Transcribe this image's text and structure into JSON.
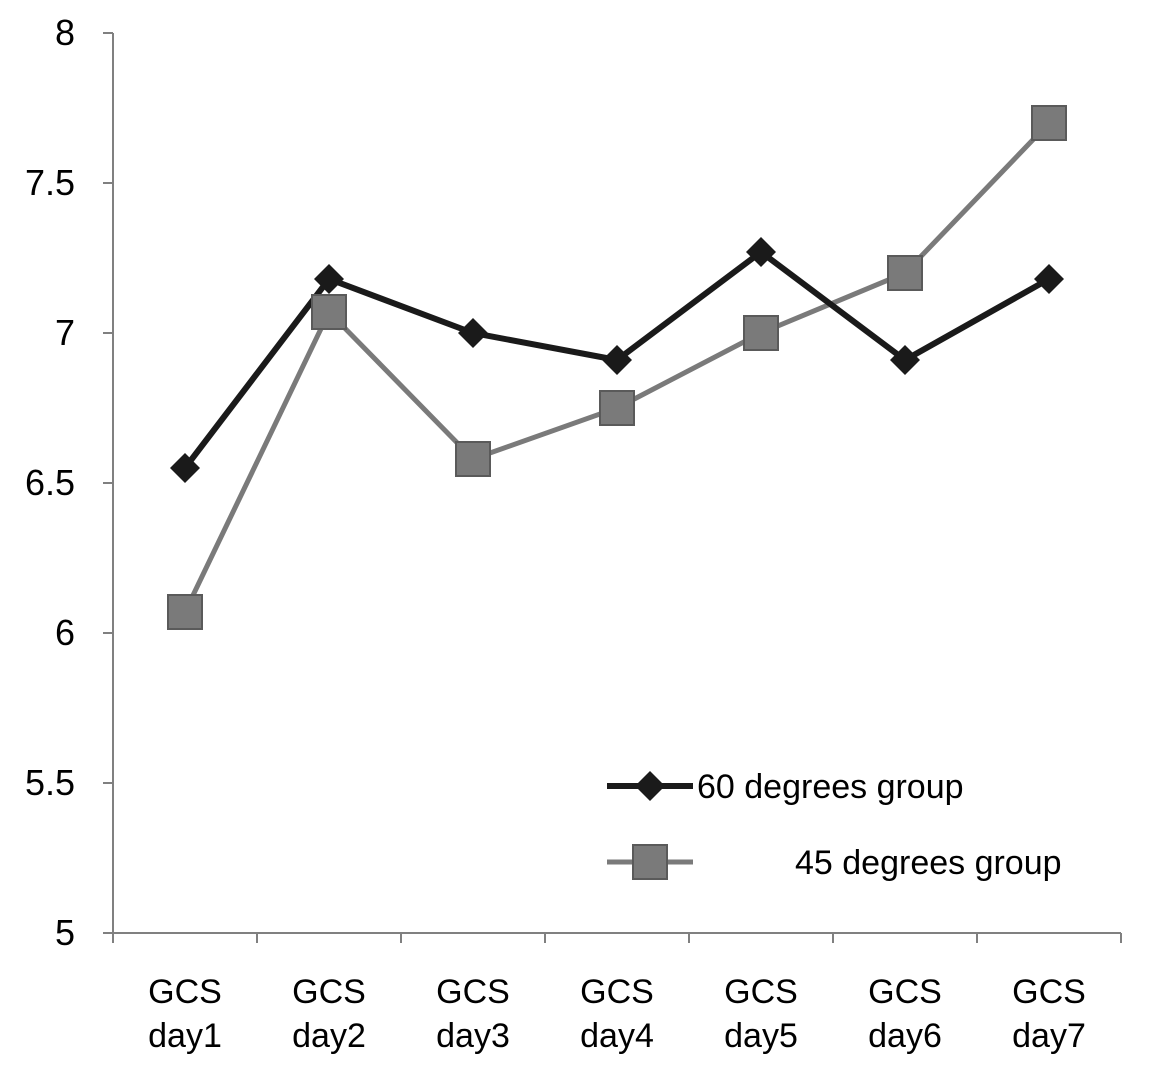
{
  "chart_data": {
    "type": "line",
    "title": "",
    "xlabel": "",
    "ylabel": "",
    "ylim": [
      5,
      8
    ],
    "yticks": [
      "5",
      "5.5",
      "6",
      "6.5",
      "7",
      "7.5",
      "8"
    ],
    "ytick_values": [
      5,
      5.5,
      6,
      6.5,
      7,
      7.5,
      8
    ],
    "categories": [
      [
        "GCS",
        "day1"
      ],
      [
        "GCS",
        "day2"
      ],
      [
        "GCS",
        "day3"
      ],
      [
        "GCS",
        "day4"
      ],
      [
        "GCS",
        "day5"
      ],
      [
        "GCS",
        "day6"
      ],
      [
        "GCS",
        "day7"
      ]
    ],
    "grid": false,
    "legend_position": "bottom-right",
    "series": [
      {
        "name": "60 degrees group",
        "marker": "diamond",
        "color": "#1a1a1a",
        "values": [
          6.55,
          7.18,
          7.0,
          6.91,
          7.27,
          6.91,
          7.18
        ]
      },
      {
        "name": "45 degrees group",
        "marker": "square",
        "color": "#7a7a7a",
        "values": [
          6.07,
          7.07,
          6.58,
          6.75,
          7.0,
          7.2,
          7.7
        ]
      }
    ],
    "colors": {
      "axis": "#808080"
    }
  }
}
